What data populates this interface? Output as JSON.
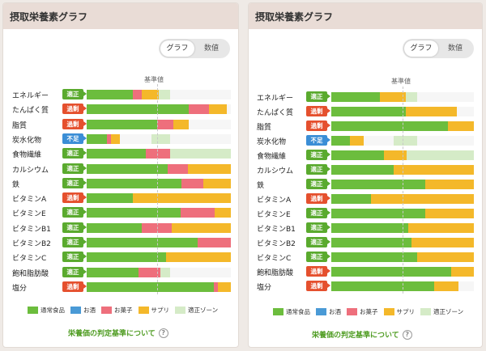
{
  "title": "摂取栄養素グラフ",
  "toggle": {
    "graph": "グラフ",
    "values": "数値"
  },
  "reference_label": "基準値",
  "colors": {
    "normal": "#6cbd3d",
    "alcohol": "#4a9ad6",
    "sweets": "#ee6f7c",
    "supplement": "#f4b82a",
    "zone": "#d5ebc7",
    "ok": "#5aaa2e",
    "over": "#e5502e",
    "low": "#3b8ed6"
  },
  "legend": [
    {
      "key": "normal",
      "label": "通常食品"
    },
    {
      "key": "alcohol",
      "label": "お酒"
    },
    {
      "key": "sweets",
      "label": "お菓子"
    },
    {
      "key": "supplement",
      "label": "サプリ"
    },
    {
      "key": "zone",
      "label": "適正ゾーン"
    }
  ],
  "footer_link": "栄養価の判定基準について",
  "help_icon": "question-circle-icon",
  "panels": [
    {
      "id": "a",
      "rows": [
        {
          "name": "エネルギー",
          "status": "適正",
          "type": "ok",
          "segs": [
            {
              "c": "normal",
              "f": 0.32
            },
            {
              "c": "sweets",
              "f": 0.06
            },
            {
              "c": "supplement",
              "f": 0.12
            }
          ],
          "zone": [
            0.48,
            0.58
          ]
        },
        {
          "name": "たんぱく質",
          "status": "過剰",
          "type": "over",
          "segs": [
            {
              "c": "normal",
              "f": 0.71
            },
            {
              "c": "sweets",
              "f": 0.14
            },
            {
              "c": "supplement",
              "f": 0.12
            }
          ],
          "zone": [
            0.42,
            0.58
          ]
        },
        {
          "name": "脂質",
          "status": "過剰",
          "type": "over",
          "segs": [
            {
              "c": "normal",
              "f": 0.49
            },
            {
              "c": "sweets",
              "f": 0.11
            },
            {
              "c": "supplement",
              "f": 0.11
            }
          ],
          "zone": [
            0.42,
            0.58
          ]
        },
        {
          "name": "炭水化物",
          "status": "不足",
          "type": "low",
          "segs": [
            {
              "c": "normal",
              "f": 0.14
            },
            {
              "c": "sweets",
              "f": 0.03
            },
            {
              "c": "supplement",
              "f": 0.06
            }
          ],
          "zone": [
            0.45,
            0.58
          ]
        },
        {
          "name": "食物繊維",
          "status": "適正",
          "type": "ok",
          "segs": [
            {
              "c": "normal",
              "f": 0.41
            },
            {
              "c": "sweets",
              "f": 0.17
            }
          ],
          "zone": [
            0.58,
            1.0
          ]
        },
        {
          "name": "カルシウム",
          "status": "適正",
          "type": "ok",
          "segs": [
            {
              "c": "normal",
              "f": 0.56
            },
            {
              "c": "sweets",
              "f": 0.14
            },
            {
              "c": "supplement",
              "f": 0.3
            }
          ],
          "zone": [
            0.52,
            1.0
          ]
        },
        {
          "name": "鉄",
          "status": "適正",
          "type": "ok",
          "segs": [
            {
              "c": "normal",
              "f": 0.66
            },
            {
              "c": "sweets",
              "f": 0.15
            },
            {
              "c": "supplement",
              "f": 0.19
            }
          ],
          "zone": [
            0.52,
            1.0
          ]
        },
        {
          "name": "ビタミンA",
          "status": "過剰",
          "type": "over",
          "segs": [
            {
              "c": "normal",
              "f": 0.32
            },
            {
              "c": "supplement",
              "f": 0.68
            }
          ],
          "zone": [
            0.52,
            1.0
          ]
        },
        {
          "name": "ビタミンE",
          "status": "適正",
          "type": "ok",
          "segs": [
            {
              "c": "normal",
              "f": 0.65
            },
            {
              "c": "sweets",
              "f": 0.24
            },
            {
              "c": "supplement",
              "f": 0.11
            }
          ],
          "zone": [
            0.52,
            1.0
          ]
        },
        {
          "name": "ビタミンB1",
          "status": "適正",
          "type": "ok",
          "segs": [
            {
              "c": "normal",
              "f": 0.38
            },
            {
              "c": "sweets",
              "f": 0.21
            },
            {
              "c": "supplement",
              "f": 0.41
            }
          ],
          "zone": [
            0.52,
            1.0
          ]
        },
        {
          "name": "ビタミンB2",
          "status": "適正",
          "type": "ok",
          "segs": [
            {
              "c": "normal",
              "f": 0.77
            },
            {
              "c": "sweets",
              "f": 0.23
            }
          ],
          "zone": [
            0.52,
            1.0
          ]
        },
        {
          "name": "ビタミンC",
          "status": "適正",
          "type": "ok",
          "segs": [
            {
              "c": "normal",
              "f": 0.55
            },
            {
              "c": "supplement",
              "f": 0.45
            }
          ],
          "zone": [
            0.52,
            1.0
          ]
        },
        {
          "name": "飽和脂肪酸",
          "status": "適正",
          "type": "ok",
          "segs": [
            {
              "c": "normal",
              "f": 0.36
            },
            {
              "c": "sweets",
              "f": 0.15
            }
          ],
          "zone": [
            0.42,
            0.58
          ]
        },
        {
          "name": "塩分",
          "status": "過剰",
          "type": "over",
          "segs": [
            {
              "c": "normal",
              "f": 0.88
            },
            {
              "c": "sweets",
              "f": 0.03
            },
            {
              "c": "supplement",
              "f": 0.09
            }
          ],
          "zone": [
            0.0,
            0.58
          ]
        }
      ]
    },
    {
      "id": "b",
      "rows": [
        {
          "name": "エネルギー",
          "status": "適正",
          "type": "ok",
          "segs": [
            {
              "c": "normal",
              "f": 0.34
            },
            {
              "c": "supplement",
              "f": 0.18
            }
          ],
          "zone": [
            0.48,
            0.6
          ]
        },
        {
          "name": "たんぱく質",
          "status": "過剰",
          "type": "over",
          "segs": [
            {
              "c": "normal",
              "f": 0.52
            },
            {
              "c": "supplement",
              "f": 0.36
            }
          ],
          "zone": [
            0.44,
            0.6
          ]
        },
        {
          "name": "脂質",
          "status": "過剰",
          "type": "over",
          "segs": [
            {
              "c": "normal",
              "f": 0.82
            },
            {
              "c": "supplement",
              "f": 0.18
            }
          ],
          "zone": [
            0.44,
            0.6
          ]
        },
        {
          "name": "炭水化物",
          "status": "不足",
          "type": "low",
          "segs": [
            {
              "c": "normal",
              "f": 0.13
            },
            {
              "c": "supplement",
              "f": 0.1
            }
          ],
          "zone": [
            0.44,
            0.6
          ]
        },
        {
          "name": "食物繊維",
          "status": "適正",
          "type": "ok",
          "segs": [
            {
              "c": "normal",
              "f": 0.37
            },
            {
              "c": "supplement",
              "f": 0.16
            }
          ],
          "zone": [
            0.5,
            1.0
          ]
        },
        {
          "name": "カルシウム",
          "status": "適正",
          "type": "ok",
          "segs": [
            {
              "c": "normal",
              "f": 0.44
            },
            {
              "c": "supplement",
              "f": 0.56
            }
          ],
          "zone": [
            0.5,
            1.0
          ]
        },
        {
          "name": "鉄",
          "status": "適正",
          "type": "ok",
          "segs": [
            {
              "c": "normal",
              "f": 0.66
            },
            {
              "c": "supplement",
              "f": 0.34
            }
          ],
          "zone": [
            0.5,
            1.0
          ]
        },
        {
          "name": "ビタミンA",
          "status": "過剰",
          "type": "over",
          "segs": [
            {
              "c": "normal",
              "f": 0.28
            },
            {
              "c": "supplement",
              "f": 0.72
            }
          ],
          "zone": [
            0.5,
            1.0
          ]
        },
        {
          "name": "ビタミンE",
          "status": "適正",
          "type": "ok",
          "segs": [
            {
              "c": "normal",
              "f": 0.66
            },
            {
              "c": "supplement",
              "f": 0.34
            }
          ],
          "zone": [
            0.5,
            1.0
          ]
        },
        {
          "name": "ビタミンB1",
          "status": "適正",
          "type": "ok",
          "segs": [
            {
              "c": "normal",
              "f": 0.54
            },
            {
              "c": "supplement",
              "f": 0.46
            }
          ],
          "zone": [
            0.5,
            1.0
          ]
        },
        {
          "name": "ビタミンB2",
          "status": "適正",
          "type": "ok",
          "segs": [
            {
              "c": "normal",
              "f": 0.56
            },
            {
              "c": "supplement",
              "f": 0.44
            }
          ],
          "zone": [
            0.5,
            1.0
          ]
        },
        {
          "name": "ビタミンC",
          "status": "適正",
          "type": "ok",
          "segs": [
            {
              "c": "normal",
              "f": 0.6
            },
            {
              "c": "supplement",
              "f": 0.4
            }
          ],
          "zone": [
            0.5,
            1.0
          ]
        },
        {
          "name": "飽和脂肪酸",
          "status": "過剰",
          "type": "over",
          "segs": [
            {
              "c": "normal",
              "f": 0.84
            },
            {
              "c": "supplement",
              "f": 0.16
            }
          ],
          "zone": [
            0.44,
            0.6
          ]
        },
        {
          "name": "塩分",
          "status": "過剰",
          "type": "over",
          "segs": [
            {
              "c": "normal",
              "f": 0.72
            },
            {
              "c": "supplement",
              "f": 0.17
            }
          ],
          "zone": [
            0.0,
            0.6
          ]
        }
      ]
    }
  ]
}
